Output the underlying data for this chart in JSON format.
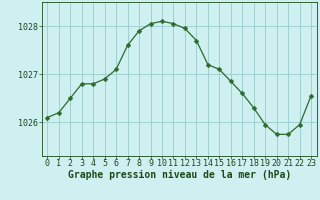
{
  "x": [
    0,
    1,
    2,
    3,
    4,
    5,
    6,
    7,
    8,
    9,
    10,
    11,
    12,
    13,
    14,
    15,
    16,
    17,
    18,
    19,
    20,
    21,
    22,
    23
  ],
  "y": [
    1026.1,
    1026.2,
    1026.5,
    1026.8,
    1026.8,
    1026.9,
    1027.1,
    1027.6,
    1027.9,
    1028.05,
    1028.1,
    1028.05,
    1027.95,
    1027.7,
    1027.2,
    1027.1,
    1026.85,
    1026.6,
    1026.3,
    1025.95,
    1025.75,
    1025.75,
    1025.95,
    1026.55
  ],
  "line_color": "#2d6a2d",
  "marker": "D",
  "marker_size": 2.5,
  "bg_color": "#cef0f0",
  "grid_color": "#a0d0d0",
  "xlabel": "Graphe pression niveau de la mer (hPa)",
  "xlabel_fontsize": 7,
  "yticks": [
    1026,
    1027,
    1028
  ],
  "ylim": [
    1025.3,
    1028.5
  ],
  "xlim": [
    -0.5,
    23.5
  ],
  "tick_color": "#1a4a1a",
  "tick_fontsize": 6,
  "title": ""
}
